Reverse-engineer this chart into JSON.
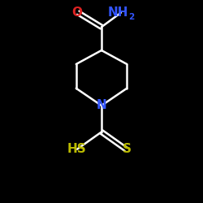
{
  "bg_color": "#000000",
  "bond_color": "#ffffff",
  "bond_width": 1.8,
  "atom_colors": {
    "O": "#dd2222",
    "N_amide": "#3355ff",
    "N_ring": "#3355ff",
    "S": "#bbbb00",
    "C": "#ffffff"
  },
  "font_size_atom": 11,
  "font_size_sub": 7.5,
  "xlim": [
    0,
    10
  ],
  "ylim": [
    0,
    10
  ]
}
